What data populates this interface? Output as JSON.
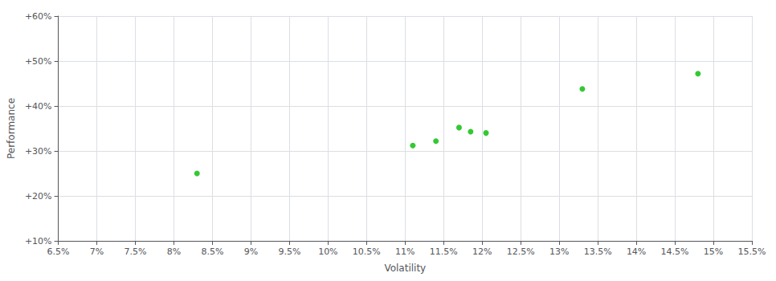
{
  "chart_data": {
    "type": "scatter",
    "xlabel": "Volatility",
    "ylabel": "Performance",
    "x": [
      8.3,
      11.1,
      11.4,
      11.7,
      11.85,
      12.05,
      13.3,
      14.8
    ],
    "values": [
      25.0,
      31.2,
      32.2,
      35.2,
      34.3,
      34.0,
      43.8,
      47.2
    ],
    "color": "#00bb00",
    "marker": "circle",
    "xlim": [
      6.5,
      15.5
    ],
    "xticks": [
      {
        "value": 6.5,
        "label": "6.5%"
      },
      {
        "value": 7.0,
        "label": "7%"
      },
      {
        "value": 7.5,
        "label": "7.5%"
      },
      {
        "value": 8.0,
        "label": "8%"
      },
      {
        "value": 8.5,
        "label": "8.5%"
      },
      {
        "value": 9.0,
        "label": "9%"
      },
      {
        "value": 9.5,
        "label": "9.5%"
      },
      {
        "value": 10.0,
        "label": "10%"
      },
      {
        "value": 10.5,
        "label": "10.5%"
      },
      {
        "value": 11.0,
        "label": "11%"
      },
      {
        "value": 11.5,
        "label": "11.5%"
      },
      {
        "value": 12.0,
        "label": "12%"
      },
      {
        "value": 12.5,
        "label": "12.5%"
      },
      {
        "value": 13.0,
        "label": "13%"
      },
      {
        "value": 13.5,
        "label": "13.5%"
      },
      {
        "value": 14.0,
        "label": "14%"
      },
      {
        "value": 14.5,
        "label": "14.5%"
      },
      {
        "value": 15.0,
        "label": "15%"
      },
      {
        "value": 15.5,
        "label": "15.5%"
      }
    ],
    "ylim": [
      10,
      60
    ],
    "yticks": [
      {
        "value": 10,
        "label": "+10%"
      },
      {
        "value": 20,
        "label": "+20%"
      },
      {
        "value": 30,
        "label": "+30%"
      },
      {
        "value": 40,
        "label": "+40%"
      },
      {
        "value": 50,
        "label": "+50%"
      },
      {
        "value": 60,
        "label": "+60%"
      }
    ],
    "grid": true
  }
}
